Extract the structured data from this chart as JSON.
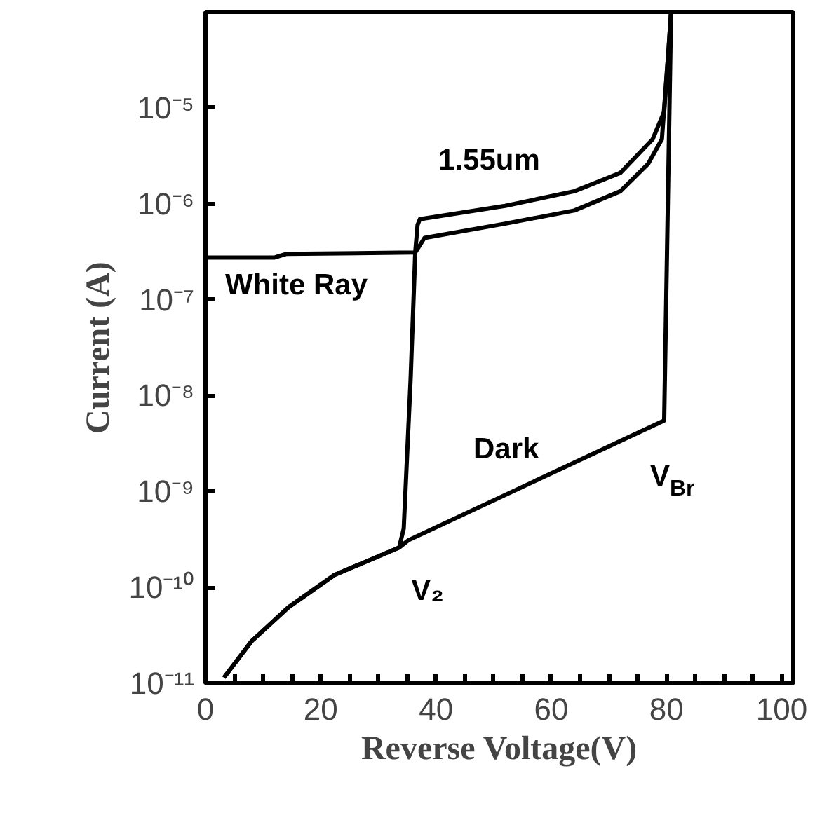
{
  "chart_data": {
    "type": "line",
    "xlabel": "Reverse Voltage(V)",
    "ylabel": "Current (A)",
    "log": "y",
    "xlim": [
      0,
      102
    ],
    "ylim": [
      1e-11,
      0.0001
    ],
    "xticks": [
      0,
      {
        "value": 5,
        "label": null
      },
      {
        "value": 10,
        "label": null
      },
      {
        "value": 15,
        "label": null
      },
      20,
      {
        "value": 25,
        "label": null
      },
      {
        "value": 30,
        "label": null
      },
      {
        "value": 35,
        "label": null
      },
      40,
      {
        "value": 45,
        "label": null
      },
      {
        "value": 50,
        "label": null
      },
      {
        "value": 55,
        "label": null
      },
      60,
      {
        "value": 65,
        "label": null
      },
      {
        "value": 70,
        "label": null
      },
      {
        "value": 75,
        "label": null
      },
      80,
      {
        "value": 85,
        "label": null
      },
      {
        "value": 90,
        "label": null
      },
      {
        "value": 95,
        "label": null
      },
      100
    ],
    "yticks": [
      {
        "value": 1e-11,
        "label": "10⁻¹¹"
      },
      {
        "value": 1e-10,
        "label": "10⁻¹⁰"
      },
      {
        "value": 1e-09,
        "label": "10⁻⁹"
      },
      {
        "value": 1e-08,
        "label": "10⁻⁸"
      },
      {
        "value": 1e-07,
        "label": "10⁻⁷"
      },
      {
        "value": 1e-06,
        "label": "10⁻⁶"
      },
      {
        "value": 1e-05,
        "label": "10⁻⁵"
      }
    ],
    "grid": false,
    "marker": "none",
    "line_style": "solid",
    "series": [
      {
        "color": "#000000",
        "x": [
          3.2,
          8,
          14.4,
          22.4,
          33.6,
          35.2,
          79.6,
          80.8
        ],
        "values": [
          1.15e-11,
          2.75e-11,
          6.2e-11,
          1.35e-10,
          2.6e-10,
          3.1e-10,
          5.5e-09,
          0.0001
        ]
      },
      {
        "color": "#000000",
        "x": [
          3.2,
          8,
          14.4,
          22.4,
          33.6,
          34.4,
          35.6,
          36.4,
          38,
          52,
          64,
          72,
          76.8,
          79.2,
          80.4,
          80.8
        ],
        "values": [
          1.15e-11,
          2.75e-11,
          6.2e-11,
          1.35e-10,
          2.6e-10,
          4.1e-10,
          1.5e-08,
          3.1e-07,
          4.4e-07,
          6.2e-07,
          8.5e-07,
          1.35e-06,
          2.6e-06,
          4.7e-06,
          4.4e-05,
          0.0001
        ]
      },
      {
        "color": "#000000",
        "x": [
          0,
          12,
          14,
          36.4,
          36.8,
          37.2,
          52,
          64,
          72,
          77.6,
          79.6,
          80.4,
          80.8
        ],
        "values": [
          2.75e-07,
          2.75e-07,
          3e-07,
          3.1e-07,
          6e-07,
          6.9e-07,
          9.5e-07,
          1.35e-06,
          2.1e-06,
          4.7e-06,
          9.1e-06,
          4.4e-05,
          0.0001
        ]
      }
    ],
    "annotations": [
      "White Ray",
      "1.55um",
      "Dark",
      {
        "text": "V₂",
        "x": 35.2,
        "y": 3.1e-10
      },
      {
        "text": "V$_{Br}$",
        "x": 79.6,
        "y": 5.5e-09
      }
    ]
  }
}
